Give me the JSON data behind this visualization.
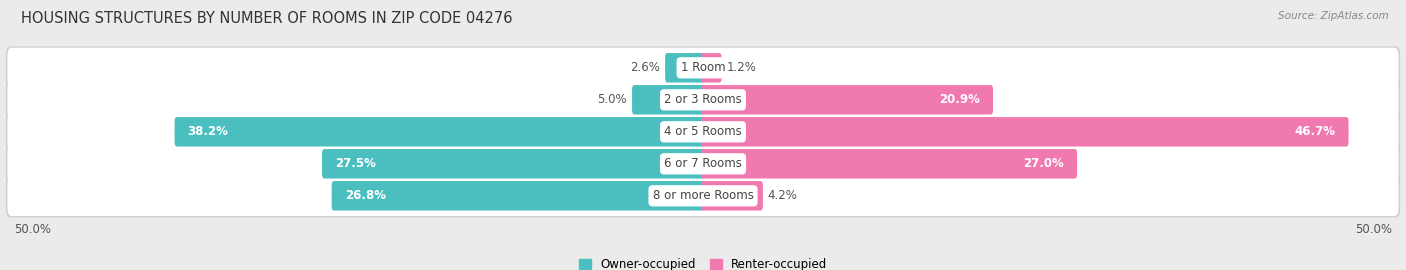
{
  "title": "HOUSING STRUCTURES BY NUMBER OF ROOMS IN ZIP CODE 04276",
  "source": "Source: ZipAtlas.com",
  "categories": [
    "1 Room",
    "2 or 3 Rooms",
    "4 or 5 Rooms",
    "6 or 7 Rooms",
    "8 or more Rooms"
  ],
  "owner_values": [
    2.6,
    5.0,
    38.2,
    27.5,
    26.8
  ],
  "renter_values": [
    1.2,
    20.9,
    46.7,
    27.0,
    4.2
  ],
  "owner_color": "#4bbfbf",
  "renter_color": "#f07ab0",
  "owner_label": "Owner-occupied",
  "renter_label": "Renter-occupied",
  "xlim": 50.0,
  "bar_height": 0.62,
  "background_color": "#ebebeb",
  "row_bg_color": "#ffffff",
  "title_fontsize": 10.5,
  "label_fontsize": 8.5,
  "cat_fontsize": 8.5,
  "tick_fontsize": 8.5,
  "x_axis_label": "50.0%",
  "owner_threshold": 6.0,
  "renter_threshold": 6.0,
  "value_color_inside": "#ffffff",
  "value_color_outside": "#555555",
  "cat_text_color": "#444444"
}
